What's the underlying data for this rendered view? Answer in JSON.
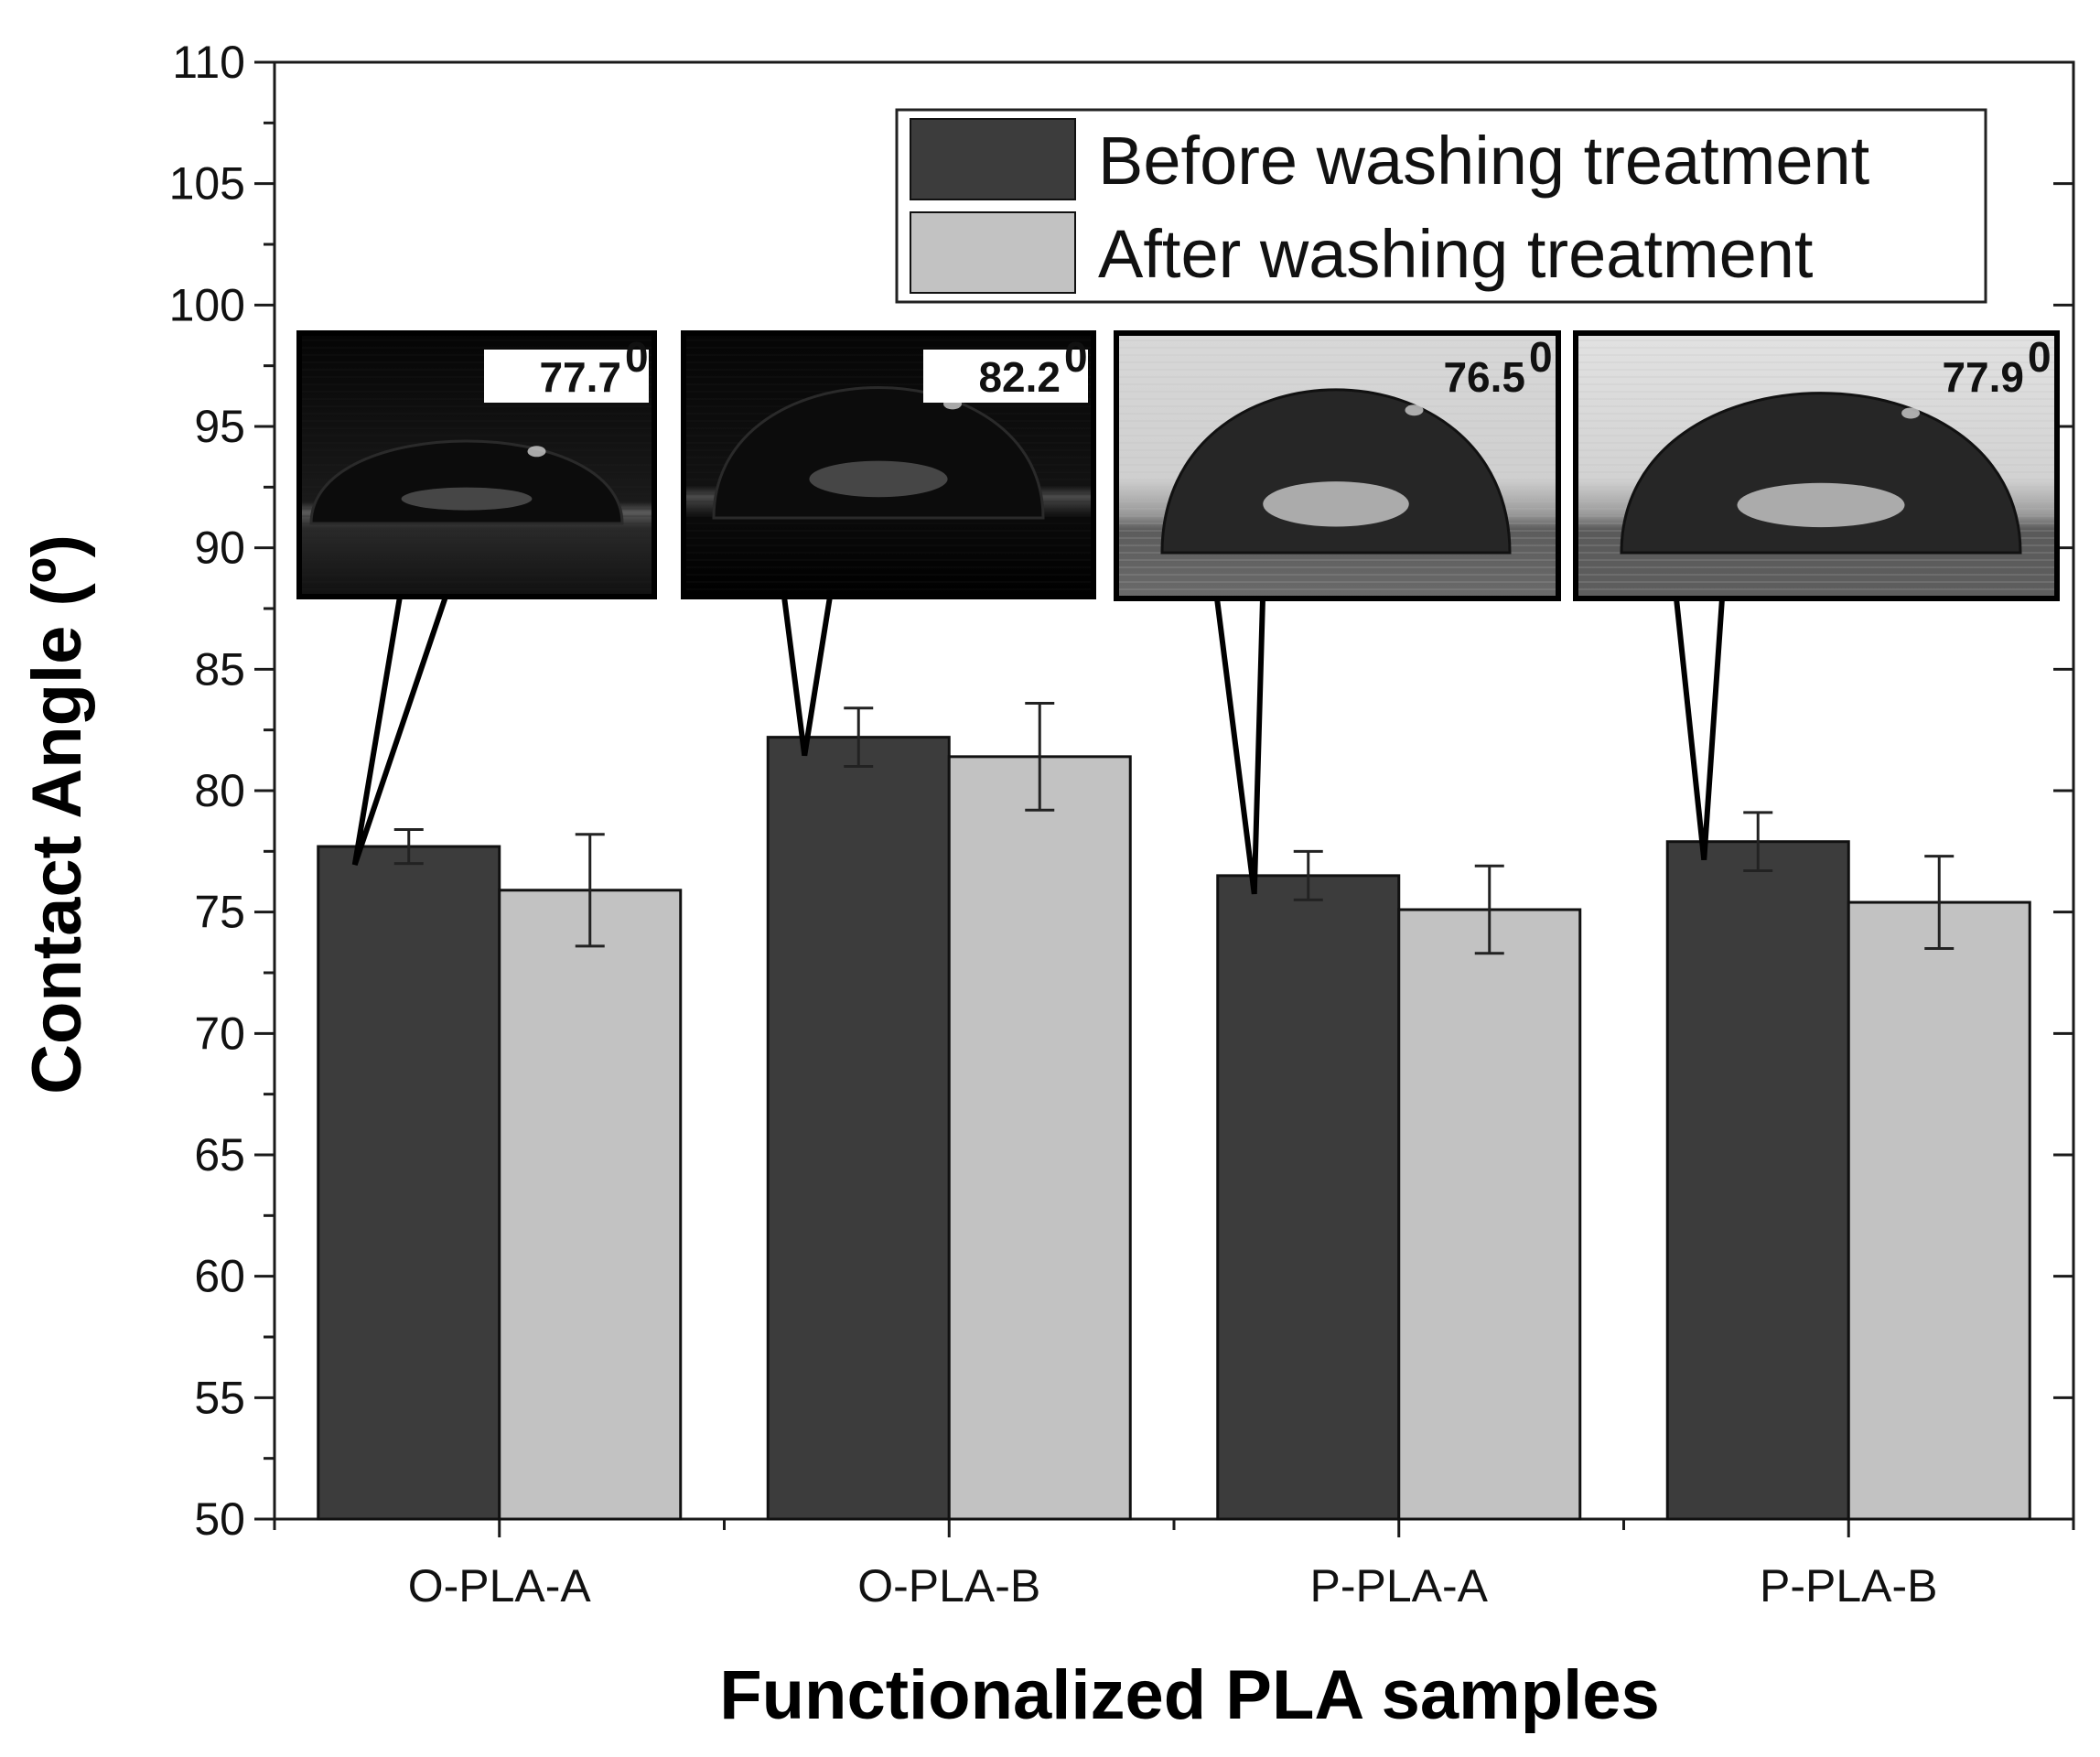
{
  "chart_data": {
    "type": "bar",
    "title": "",
    "xlabel": "Functionalized PLA samples",
    "ylabel": "Contact Angle (º)",
    "ylim": [
      50,
      110
    ],
    "y_major_step": 5,
    "categories": [
      "O-PLA-A",
      "O-PLA-B",
      "P-PLA-A",
      "P-PLA-B"
    ],
    "series": [
      {
        "name": "Before washing treatment",
        "values": [
          77.7,
          82.2,
          76.5,
          77.9
        ],
        "errors": [
          0.7,
          1.2,
          1.0,
          1.2
        ],
        "color": "#3c3c3c"
      },
      {
        "name": "After washing treatment",
        "values": [
          75.9,
          81.4,
          75.1,
          75.4
        ],
        "errors": [
          2.3,
          2.2,
          1.8,
          1.9
        ],
        "color": "#c2c2c2"
      }
    ],
    "legend_position": "top-right",
    "insets": [
      {
        "category": "O-PLA-A",
        "label": "77.7",
        "unit": "0"
      },
      {
        "category": "O-PLA-B",
        "label": "82.2",
        "unit": "0"
      },
      {
        "category": "P-PLA-A",
        "label": "76.5",
        "unit": "0"
      },
      {
        "category": "P-PLA-B",
        "label": "77.9",
        "unit": "0"
      }
    ]
  }
}
